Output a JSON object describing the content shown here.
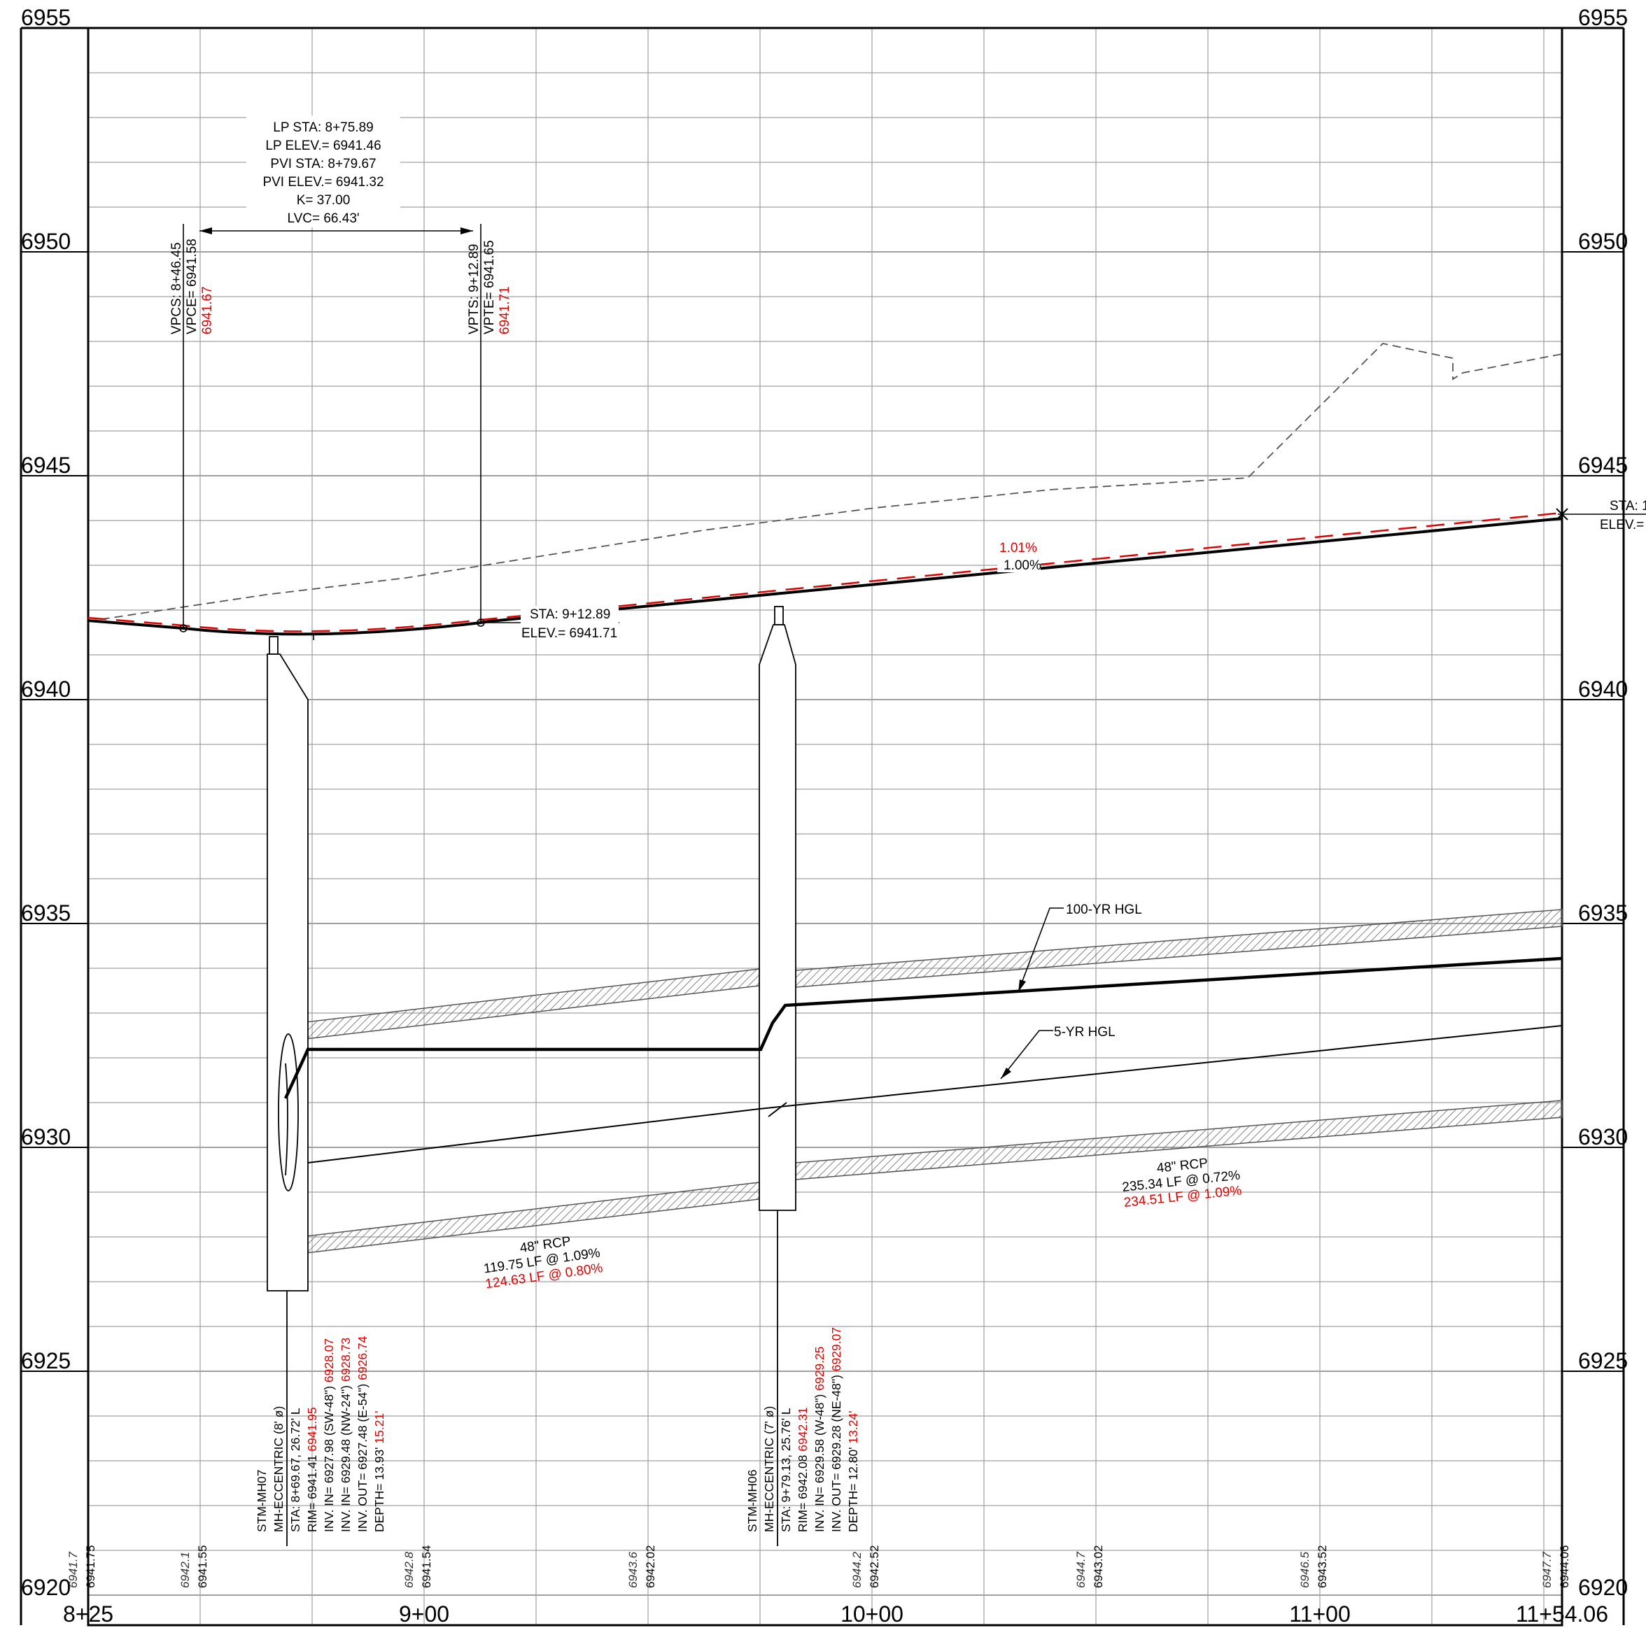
{
  "elevation_labels": [
    "6955",
    "6950",
    "6945",
    "6940",
    "6935",
    "6930",
    "6925",
    "6920"
  ],
  "station_labels": [
    "8+25",
    "9+00",
    "10+00",
    "11+00",
    "11+54.06"
  ],
  "vertical_curve": {
    "lines": [
      "LP STA: 8+75.89",
      "LP ELEV.= 6941.46",
      "PVI STA: 8+79.67",
      "PVI ELEV.= 6941.32",
      "K= 37.00",
      "LVC= 66.43'"
    ],
    "vpc": [
      "VPCS: 8+46.45",
      "VPCE= 6941.58"
    ],
    "vpc_red": "6941.67",
    "vpt": [
      "VPTS: 9+12.89",
      "VPTE= 6941.65"
    ],
    "vpt_red": "6941.71",
    "point": [
      "STA: 9+12.89",
      "ELEV.= 6941.71"
    ]
  },
  "grades": {
    "existing": "1.00%",
    "proposed_red": "1.01%"
  },
  "end_point": [
    "STA: 1",
    "ELEV.="
  ],
  "hgl_labels": {
    "hundred_yr": "100-YR HGL",
    "five_yr": "5-YR HGL"
  },
  "pipe_left": {
    "line1": "48\" RCP",
    "line2": "119.75 LF @ 1.09%",
    "red": "124.63 LF @ 0.80%"
  },
  "pipe_right": {
    "line1": "48\" RCP",
    "line2": "235.34 LF @ 0.72%",
    "red": "234.51 LF @ 1.09%"
  },
  "mh07": {
    "lines": [
      "STM-MH07",
      "MH-ECCENTRIC (8' ø)",
      "STA: 8+69.67, 26.72' L",
      "RIM= 6941.41",
      "INV. IN= 6927.98 (SW-48\")",
      "INV. IN= 6929.48 (NW-24\")",
      "INV. OUT= 6927.48 (E-54\")",
      "DEPTH= 13.93'"
    ],
    "red": [
      "",
      "",
      "",
      "6941.95",
      "6928.07",
      "6928.73",
      "6926.74",
      "15.21'"
    ]
  },
  "mh06": {
    "lines": [
      "STM-MH06",
      "MH-ECCENTRIC (7' ø)",
      "STA: 9+79.13, 25.76' L",
      "RIM= 6942.08",
      "INV. IN= 6929.58 (W-48\")",
      "INV. OUT= 6929.28 (NE-48\")",
      "DEPTH= 12.80'"
    ],
    "red": [
      "",
      "",
      "",
      "6942.31",
      "6929.25",
      "6929.07",
      "13.24'"
    ]
  },
  "bottom_ticks": [
    {
      "ex": "6941.7",
      "pr": "6941.75"
    },
    {
      "ex": "6942.1",
      "pr": "6941.55"
    },
    {
      "ex": "6942.8",
      "pr": "6941.54"
    },
    {
      "ex": "6943.6",
      "pr": "6942.02"
    },
    {
      "ex": "6944.2",
      "pr": "6942.52"
    },
    {
      "ex": "6944.7",
      "pr": "6943.02"
    },
    {
      "ex": "6946.5",
      "pr": "6943.52"
    },
    {
      "ex": "6947.7",
      "pr": "6944.06"
    }
  ],
  "colors": {
    "red": "#e00000",
    "grid": "#9a9a9a",
    "ink": "#000000"
  }
}
